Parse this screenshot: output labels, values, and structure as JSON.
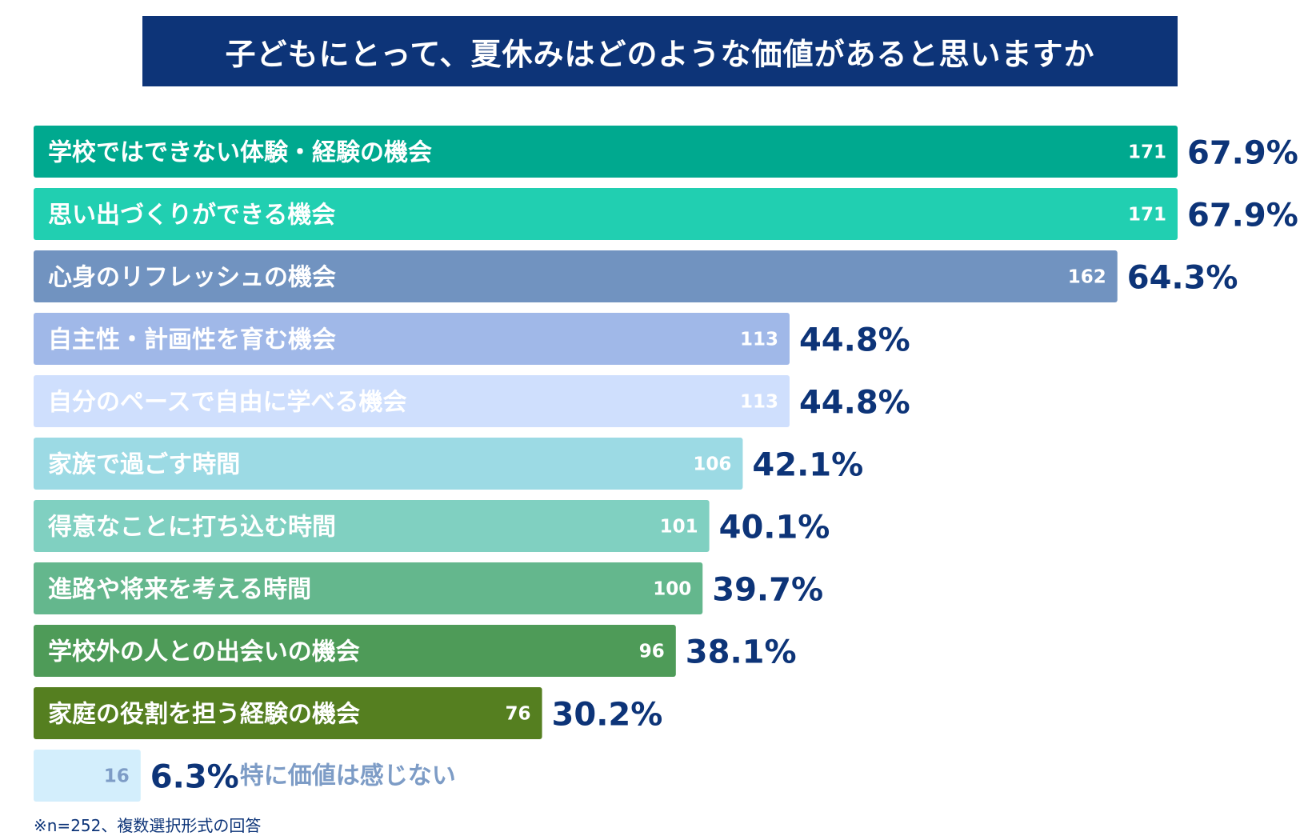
{
  "chart_data": {
    "type": "bar",
    "orientation": "horizontal",
    "title": "子どもにとって、夏休みはどのような価値があると思いますか",
    "categories": [
      "学校ではできない体験・経験の機会",
      "思い出づくりができる機会",
      "心身のリフレッシュの機会",
      "自主性・計画性を育む機会",
      "自分のペースで自由に学べる機会",
      "家族で過ごす時間",
      "得意なことに打ち込む時間",
      "進路や将来を考える時間",
      "学校外の人との出会いの機会",
      "家庭の役割を担う経験の機会",
      "特に価値は感じない"
    ],
    "counts": [
      171,
      171,
      162,
      113,
      113,
      106,
      101,
      100,
      96,
      76,
      16
    ],
    "percent_labels": [
      "67.9%",
      "67.9%",
      "64.3%",
      "44.8%",
      "44.8%",
      "42.1%",
      "40.1%",
      "39.7%",
      "38.1%",
      "30.2%",
      "6.3%"
    ],
    "bar_colors": [
      "#00a98f",
      "#21cfb1",
      "#7193c0",
      "#a0b8e8",
      "#cfdffd",
      "#9cdae4",
      "#80d0c1",
      "#64b78d",
      "#4e9b58",
      "#557f20",
      "#d3eefc"
    ],
    "label_colors": [
      "#ffffff",
      "#ffffff",
      "#ffffff",
      "#ffffff",
      "#ffffff",
      "#ffffff",
      "#ffffff",
      "#ffffff",
      "#ffffff",
      "#ffffff",
      "#7d9cc6"
    ],
    "xlim": [
      0,
      171
    ],
    "grid": false,
    "legend": "none"
  },
  "footnote": "※n=252、複数選択形式の回答",
  "colors": {
    "title_background": "#0d3478",
    "title_text": "#ffffff",
    "percent_text": "#0d3478"
  }
}
